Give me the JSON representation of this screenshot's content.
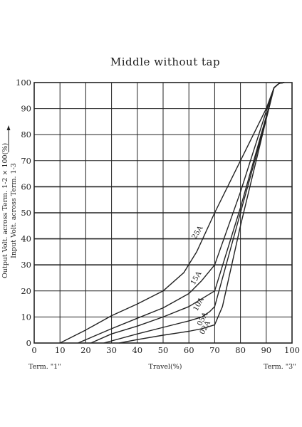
{
  "chart_data": {
    "type": "line",
    "title": "Middle without tap",
    "xlabel": "Travel(%)",
    "ylabel_line1": "Output Volt. across  Term. 1-2  × 100(%)",
    "ylabel_line2": "Input  Volt. across  Term. 1-3",
    "xlim": [
      0,
      100
    ],
    "ylim": [
      0,
      100
    ],
    "x_ticks": [
      "0",
      "10",
      "20",
      "30",
      "40",
      "50",
      "60",
      "70",
      "80",
      "90",
      "100"
    ],
    "y_ticks": [
      "0",
      "10",
      "20",
      "30",
      "40",
      "50",
      "60",
      "70",
      "80",
      "90",
      "100"
    ],
    "x_end_labels": {
      "left": "Term. \"1\"",
      "right": "Term. \"3\""
    },
    "grid": true,
    "series": [
      {
        "name": "25A",
        "x": [
          10,
          20,
          30,
          40,
          50,
          58,
          63,
          70,
          80,
          90,
          93,
          95,
          97
        ],
        "y": [
          0,
          5,
          10.5,
          15,
          20,
          27,
          35,
          50,
          70,
          90,
          98,
          99.7,
          100
        ]
      },
      {
        "name": "15A",
        "x": [
          17,
          30,
          40,
          50,
          60,
          65,
          70,
          80,
          90,
          93,
          95,
          97
        ],
        "y": [
          0,
          5.5,
          9.5,
          13.5,
          19,
          24,
          30,
          58,
          89,
          98,
          99.7,
          100
        ]
      },
      {
        "name": "10A",
        "x": [
          22,
          30,
          40,
          50,
          60,
          65,
          70,
          80,
          90,
          93,
          95,
          97
        ],
        "y": [
          0,
          3.5,
          6.5,
          10,
          14,
          17,
          20,
          52,
          87,
          98,
          99.7,
          100
        ]
      },
      {
        "name": "05A",
        "x": [
          27,
          40,
          50,
          60,
          65,
          68,
          70,
          80,
          90,
          93,
          95,
          97
        ],
        "y": [
          0,
          3.5,
          6,
          8.5,
          10,
          12,
          14,
          50,
          86,
          98,
          99.7,
          100
        ]
      },
      {
        "name": "02A",
        "x": [
          33,
          40,
          50,
          60,
          65,
          70,
          73,
          80,
          90,
          93,
          95,
          97
        ],
        "y": [
          0,
          1.3,
          3,
          4.5,
          5.5,
          7,
          14,
          45,
          86,
          98,
          99.7,
          100
        ]
      }
    ],
    "curve_labels": [
      {
        "series": "25A",
        "text": "25A",
        "at": [
          64,
          42
        ],
        "rotate": -58
      },
      {
        "series": "15A",
        "text": "15A",
        "at": [
          63.5,
          24.5
        ],
        "rotate": -60
      },
      {
        "series": "10A",
        "text": "10A",
        "at": [
          64.5,
          14.5
        ],
        "rotate": -62
      },
      {
        "series": "05A",
        "text": "05A",
        "at": [
          66,
          8.8
        ],
        "rotate": -62
      },
      {
        "series": "02A",
        "text": "02A",
        "at": [
          67,
          5.5
        ],
        "rotate": -62
      }
    ],
    "line_color": "#222222"
  }
}
